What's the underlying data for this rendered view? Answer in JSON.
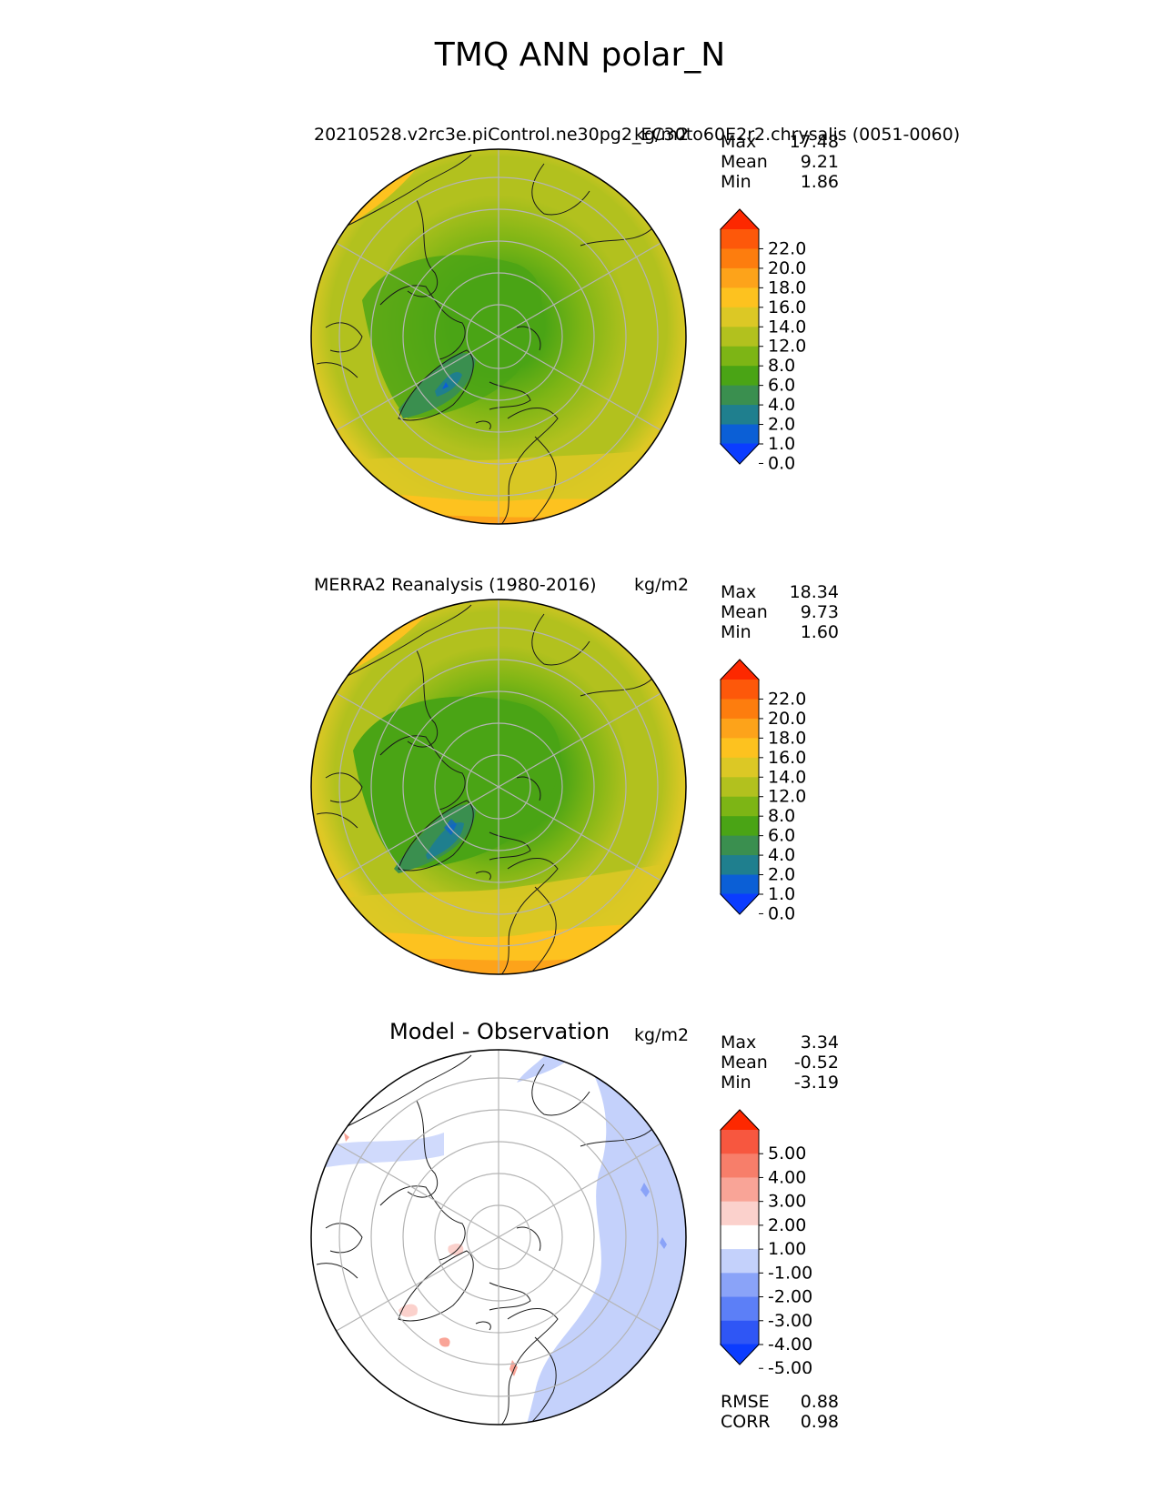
{
  "title": "TMQ ANN polar_N",
  "colors": {
    "tmq": [
      "#0b3cff",
      "#0b5fd6",
      "#1f7f8e",
      "#3a8f4f",
      "#4aa415",
      "#7db515",
      "#b2c11e",
      "#dcc825",
      "#fdc21f",
      "#fda31a",
      "#fd7d0e",
      "#fd580a",
      "#fd2800"
    ],
    "diff": [
      "#0b3cff",
      "#2f56f5",
      "#5c7ff7",
      "#8aa3f8",
      "#c4d1fb",
      "#ffffff",
      "#fbd1cc",
      "#f9a497",
      "#f77e6a",
      "#f7573f",
      "#fd2800"
    ],
    "land_outline": "#1a1a1a",
    "grid": "#b4b4b4"
  },
  "panels": [
    {
      "id": "model",
      "title": "20210528.v2rc3e.piControl.ne30pg2_EC30to60E2r2.chrysalis (0051-0060)",
      "units": "kg/m2",
      "stats": [
        {
          "label": "Max",
          "value": "17.48"
        },
        {
          "label": "Mean",
          "value": "9.21"
        },
        {
          "label": "Min",
          "value": "1.86"
        }
      ],
      "colorbar": {
        "ticks": [
          "22.0",
          "20.0",
          "18.0",
          "16.0",
          "14.0",
          "12.0",
          "8.0",
          "6.0",
          "4.0",
          "2.0",
          "1.0",
          "0.0"
        ]
      }
    },
    {
      "id": "obs",
      "title": "MERRA2 Reanalysis (1980-2016)",
      "units": "kg/m2",
      "stats": [
        {
          "label": "Max",
          "value": "18.34"
        },
        {
          "label": "Mean",
          "value": "9.73"
        },
        {
          "label": "Min",
          "value": "1.60"
        }
      ],
      "colorbar": {
        "ticks": [
          "22.0",
          "20.0",
          "18.0",
          "16.0",
          "14.0",
          "12.0",
          "8.0",
          "6.0",
          "4.0",
          "2.0",
          "1.0",
          "0.0"
        ]
      }
    },
    {
      "id": "diff",
      "title": "Model - Observation",
      "units": "kg/m2",
      "stats": [
        {
          "label": "Max",
          "value": "3.34"
        },
        {
          "label": "Mean",
          "value": "-0.52"
        },
        {
          "label": "Min",
          "value": "-3.19"
        }
      ],
      "colorbar": {
        "ticks": [
          "5.00",
          "4.00",
          "3.00",
          "2.00",
          "1.00",
          "-1.00",
          "-2.00",
          "-3.00",
          "-4.00",
          "-5.00"
        ]
      },
      "extra_stats": [
        {
          "label": "RMSE",
          "value": "0.88"
        },
        {
          "label": "CORR",
          "value": "0.98"
        }
      ]
    }
  ],
  "chart_data": [
    {
      "type": "heatmap",
      "projection": "north polar stereographic",
      "title": "20210528.v2rc3e.piControl.ne30pg2_EC30to60E2r2.chrysalis (0051-0060)",
      "units": "kg/m2",
      "max": 17.48,
      "mean": 9.21,
      "min": 1.86,
      "levels": [
        0,
        1,
        2,
        4,
        6,
        8,
        12,
        14,
        16,
        18,
        20,
        22
      ],
      "extend": "both"
    },
    {
      "type": "heatmap",
      "projection": "north polar stereographic",
      "title": "MERRA2 Reanalysis (1980-2016)",
      "units": "kg/m2",
      "max": 18.34,
      "mean": 9.73,
      "min": 1.6,
      "levels": [
        0,
        1,
        2,
        4,
        6,
        8,
        12,
        14,
        16,
        18,
        20,
        22
      ],
      "extend": "both"
    },
    {
      "type": "heatmap",
      "projection": "north polar stereographic",
      "title": "Model - Observation",
      "units": "kg/m2",
      "max": 3.34,
      "mean": -0.52,
      "min": -3.19,
      "rmse": 0.88,
      "corr": 0.98,
      "levels": [
        -5,
        -4,
        -3,
        -2,
        -1,
        1,
        2,
        3,
        4,
        5
      ],
      "extend": "both"
    }
  ]
}
